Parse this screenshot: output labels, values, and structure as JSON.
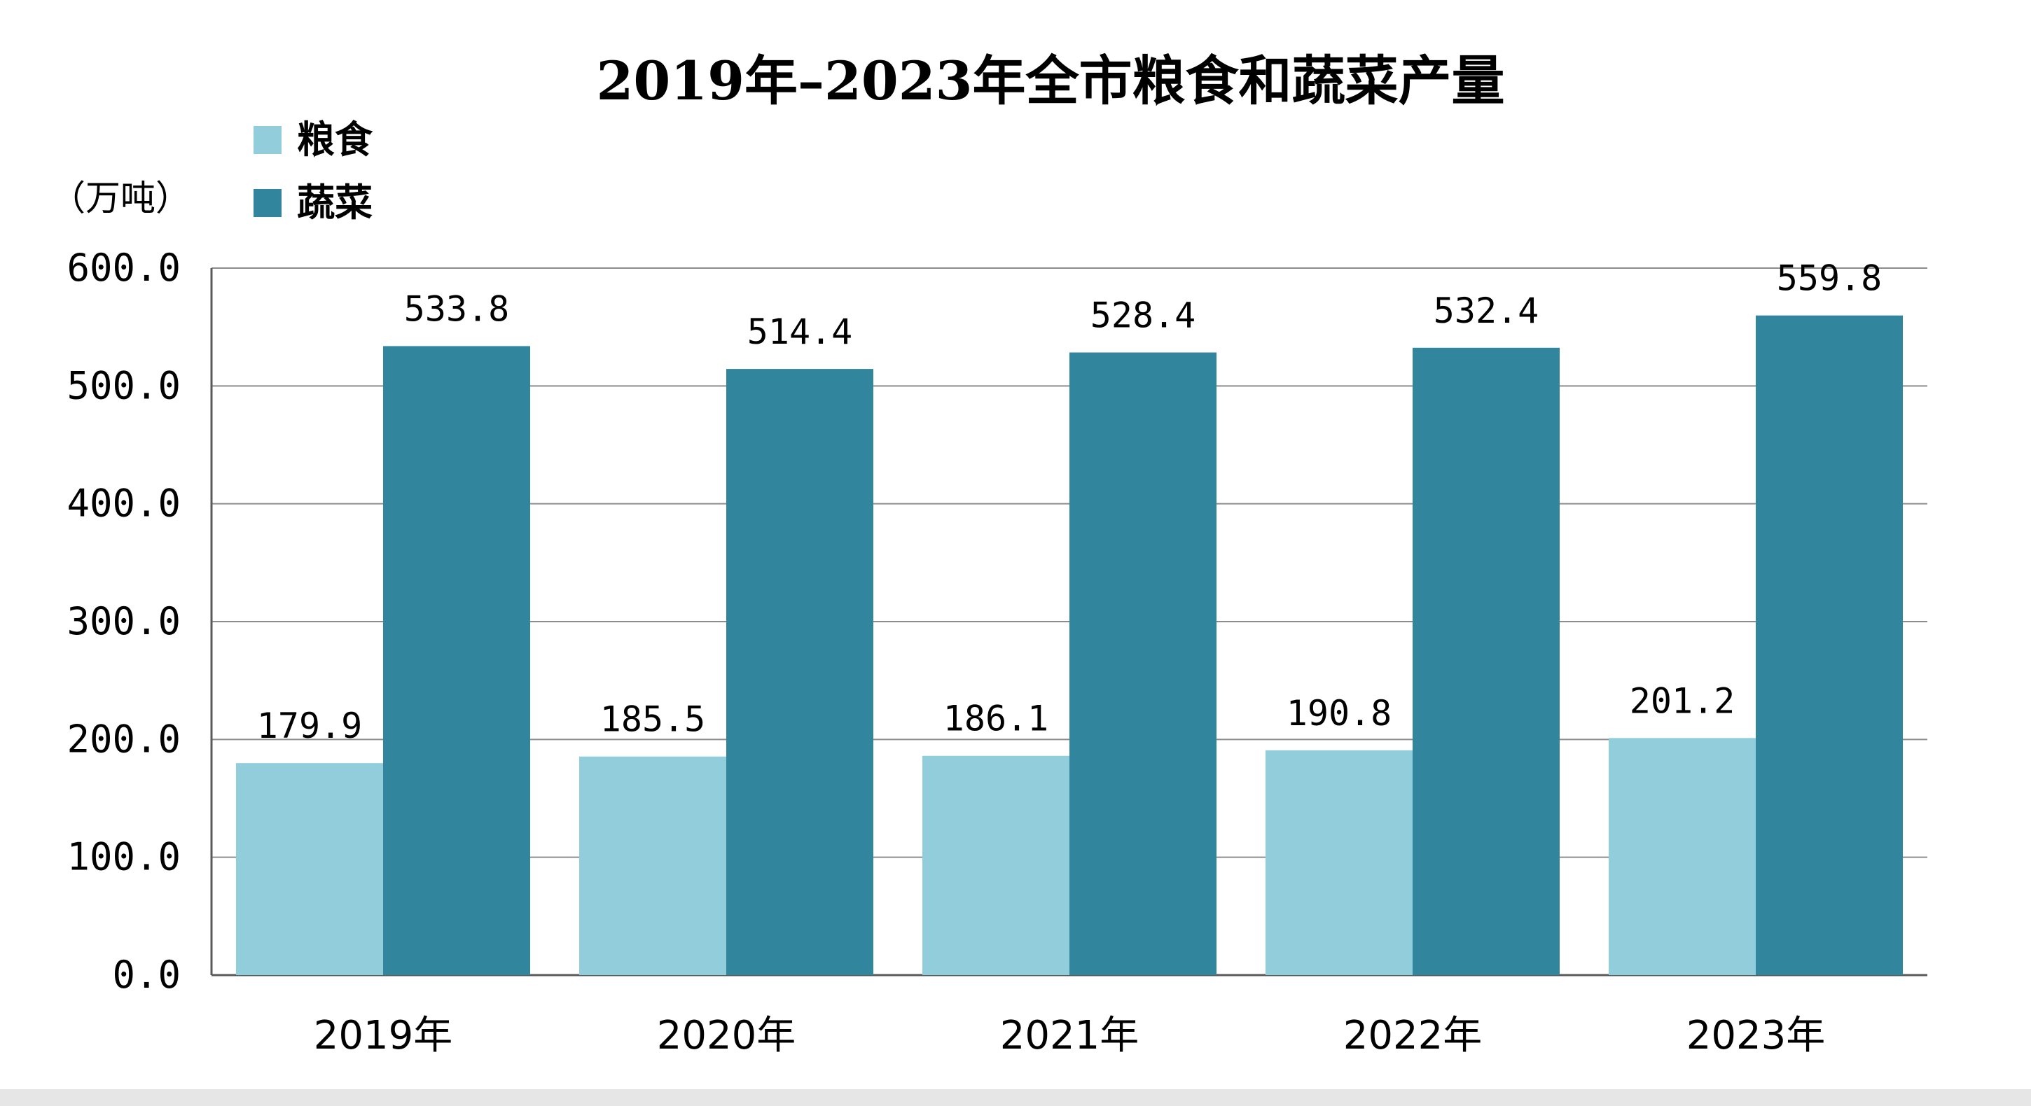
{
  "chart_data": {
    "type": "bar",
    "title": "2019年–2023年全市粮食和蔬菜产量",
    "unit_label": "（万吨）",
    "categories": [
      "2019年",
      "2020年",
      "2021年",
      "2022年",
      "2023年"
    ],
    "series": [
      {
        "name": "粮食",
        "color": "#92cddc",
        "values": [
          179.9,
          185.5,
          186.1,
          190.8,
          201.2
        ],
        "labels": [
          "179.9",
          "185.5",
          "186.1",
          "190.8",
          "201.2"
        ]
      },
      {
        "name": "蔬菜",
        "color": "#31859c",
        "values": [
          533.8,
          514.4,
          528.4,
          532.4,
          559.8
        ],
        "labels": [
          "533.8",
          "514.4",
          "528.4",
          "532.4",
          "559.8"
        ]
      }
    ],
    "ylim": [
      0,
      600
    ],
    "y_ticks": [
      {
        "value": 0,
        "label": "0.0"
      },
      {
        "value": 100,
        "label": "100.0"
      },
      {
        "value": 200,
        "label": "200.0"
      },
      {
        "value": 300,
        "label": "300.0"
      },
      {
        "value": 400,
        "label": "400.0"
      },
      {
        "value": 500,
        "label": "500.0"
      },
      {
        "value": 600,
        "label": "600.0"
      }
    ],
    "grid": true,
    "legend_position": "top-left",
    "xlabel": "",
    "ylabel": ""
  },
  "colors": {
    "gridline": "#8c8c8c",
    "axis": "#595959",
    "text": "#000000",
    "footer_band": "#e6e6e6"
  }
}
